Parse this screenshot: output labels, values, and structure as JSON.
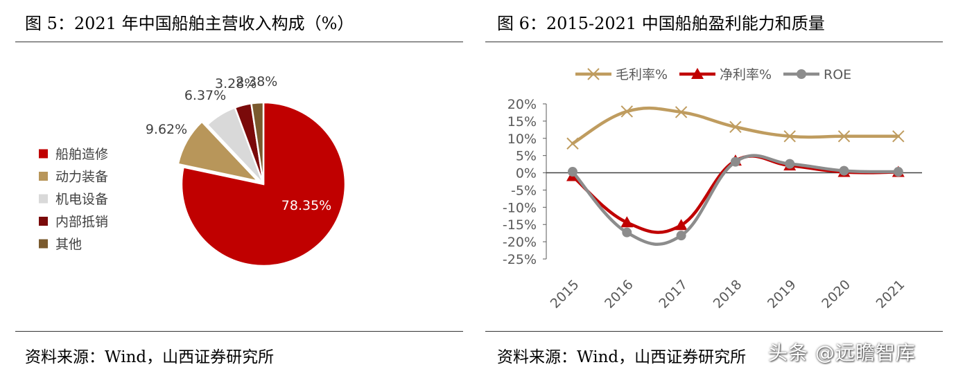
{
  "left": {
    "title": "图 5：2021 年中国船舶主营收入构成（%）",
    "source": "资料来源：Wind，山西证券研究所"
  },
  "right": {
    "title": "图 6：2015-2021 中国船舶盈利能力和质量",
    "source": "资料来源：Wind，山西证券研究所"
  },
  "watermark": "头条 @远瞻智库",
  "chart_data": [
    {
      "type": "pie",
      "title": "图 5：2021 年中国船舶主营收入构成（%）",
      "categories": [
        "船舶造修",
        "动力装备",
        "机电设备",
        "内部抵销",
        "其他"
      ],
      "values": [
        78.35,
        9.62,
        6.37,
        3.28,
        2.38
      ],
      "labels": [
        "78.35%",
        "9.62%",
        "6.37%",
        "3.28%",
        "2.38%"
      ],
      "colors": [
        "#C00000",
        "#B8965A",
        "#D9D9D9",
        "#7A0A0A",
        "#7A5A2E"
      ],
      "legend_position": "left"
    },
    {
      "type": "line",
      "title": "图 6：2015-2021 中国船舶盈利能力和质量",
      "x": [
        "2015",
        "2016",
        "2017",
        "2018",
        "2019",
        "2020",
        "2021"
      ],
      "series": [
        {
          "name": "毛利率%",
          "values": [
            8.5,
            17.8,
            17.6,
            13.3,
            10.6,
            10.6,
            10.6
          ],
          "color": "#BF9C5F",
          "marker": "x"
        },
        {
          "name": "净利率%",
          "values": [
            -1.0,
            -14.4,
            -15.2,
            3.5,
            2.1,
            0.2,
            0.2
          ],
          "color": "#C00000",
          "marker": "triangle"
        },
        {
          "name": "ROE",
          "values": [
            0.3,
            -17.3,
            -18.2,
            3.2,
            2.6,
            0.6,
            0.3
          ],
          "color": "#8C8C8C",
          "marker": "circle"
        }
      ],
      "yticks": [
        "20%",
        "15%",
        "10%",
        "5%",
        "0%",
        "-5%",
        "-10%",
        "-15%",
        "-20%",
        "-25%"
      ],
      "ylim": [
        -25,
        20
      ],
      "legend_position": "top",
      "grid": false
    }
  ]
}
